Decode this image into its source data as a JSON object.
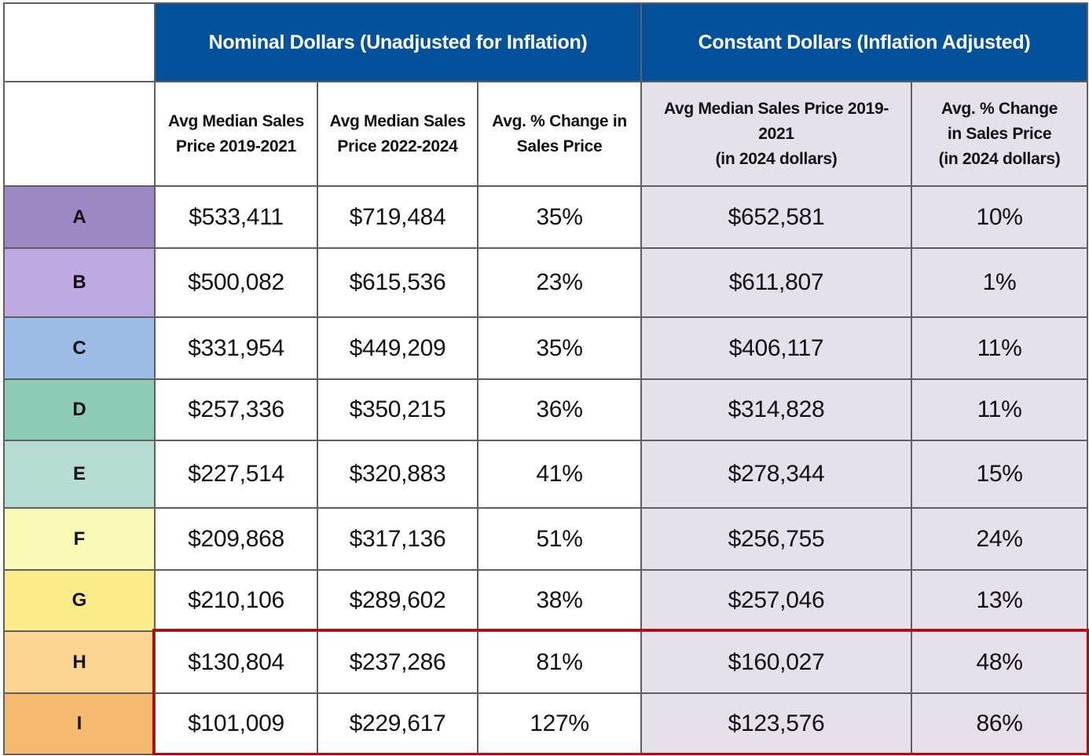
{
  "header": {
    "group_nominal": "Nominal Dollars (Unadjusted for Inflation)",
    "group_constant": "Constant Dollars (Inflation Adjusted)",
    "columns": {
      "nominal_2019_2021": [
        "Avg Median Sales",
        "Price 2019-2021"
      ],
      "nominal_2022_2024": [
        "Avg Median Sales",
        "Price 2022-2024"
      ],
      "nominal_pct_change": [
        "Avg. % Change in",
        "Sales Price"
      ],
      "constant_2019_2021": [
        "Avg Median Sales Price 2019-",
        "2021",
        "(in 2024 dollars)"
      ],
      "constant_pct_change": [
        "Avg. % Change",
        "in Sales Price",
        "(in 2024 dollars)"
      ]
    }
  },
  "rows": [
    {
      "label": "A",
      "color": "#9e87c5",
      "nominal_2019_2021": "$533,411",
      "nominal_2022_2024": "$719,484",
      "nominal_pct": "35%",
      "constant_2019_2021": "$652,581",
      "constant_pct": "10%"
    },
    {
      "label": "B",
      "color": "#bea9e3",
      "nominal_2019_2021": "$500,082",
      "nominal_2022_2024": "$615,536",
      "nominal_pct": "23%",
      "constant_2019_2021": "$611,807",
      "constant_pct": "1%"
    },
    {
      "label": "C",
      "color": "#9cbbe6",
      "nominal_2019_2021": "$331,954",
      "nominal_2022_2024": "$449,209",
      "nominal_pct": "35%",
      "constant_2019_2021": "$406,117",
      "constant_pct": "11%"
    },
    {
      "label": "D",
      "color": "#8ecbb6",
      "nominal_2019_2021": "$257,336",
      "nominal_2022_2024": "$350,215",
      "nominal_pct": "36%",
      "constant_2019_2021": "$314,828",
      "constant_pct": "11%"
    },
    {
      "label": "E",
      "color": "#b5dcd1",
      "nominal_2019_2021": "$227,514",
      "nominal_2022_2024": "$320,883",
      "nominal_pct": "41%",
      "constant_2019_2021": "$278,344",
      "constant_pct": "15%"
    },
    {
      "label": "F",
      "color": "#fafab7",
      "nominal_2019_2021": "$209,868",
      "nominal_2022_2024": "$317,136",
      "nominal_pct": "51%",
      "constant_2019_2021": "$256,755",
      "constant_pct": "24%"
    },
    {
      "label": "G",
      "color": "#f9ec88",
      "nominal_2019_2021": "$210,106",
      "nominal_2022_2024": "$289,602",
      "nominal_pct": "38%",
      "constant_2019_2021": "$257,046",
      "constant_pct": "13%"
    },
    {
      "label": "H",
      "color": "#fdd593",
      "nominal_2019_2021": "$130,804",
      "nominal_2022_2024": "$237,286",
      "nominal_pct": "81%",
      "constant_2019_2021": "$160,027",
      "constant_pct": "48%"
    },
    {
      "label": "I",
      "color": "#f5ba70",
      "nominal_2019_2021": "$101,009",
      "nominal_2022_2024": "$229,617",
      "nominal_pct": "127%",
      "constant_2019_2021": "$123,576",
      "constant_pct": "86%"
    }
  ],
  "highlighted_rows": [
    "H",
    "I"
  ],
  "colors": {
    "header_blue": "#03519a",
    "constant_bg": "#e5e0ea",
    "highlight_red": "#c0000a"
  }
}
